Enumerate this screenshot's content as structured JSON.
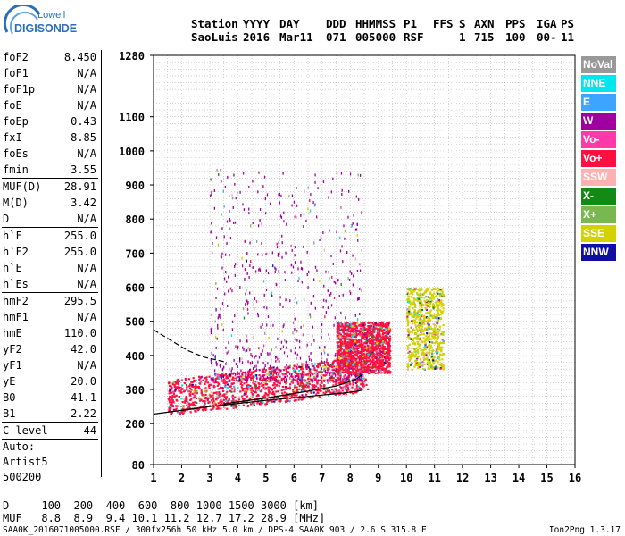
{
  "logo": {
    "top": "Lowell",
    "bottom": "DIGISONDE"
  },
  "header": {
    "labels": [
      "Station",
      "YYYY",
      "DAY",
      "DDD",
      "HHMMSS",
      "P1",
      "FFS",
      "S",
      "AXN",
      "PPS",
      "IGA",
      "PS"
    ],
    "values": [
      "SaoLuis",
      "2016",
      "Mar11",
      "071",
      "005000",
      "RSF",
      "",
      "1",
      "715",
      "100",
      "00-",
      "11"
    ]
  },
  "params_group1": [
    {
      "name": "foF2",
      "value": "8.450"
    },
    {
      "name": "foF1",
      "value": "N/A"
    },
    {
      "name": "foF1p",
      "value": "N/A"
    },
    {
      "name": "foE",
      "value": "N/A"
    },
    {
      "name": "foEp",
      "value": "0.43"
    },
    {
      "name": "fxI",
      "value": "8.85"
    },
    {
      "name": "foEs",
      "value": "N/A"
    },
    {
      "name": "fmin",
      "value": "3.55"
    }
  ],
  "params_group2": [
    {
      "name": "MUF(D)",
      "value": "28.91"
    },
    {
      "name": "M(D)",
      "value": "3.42"
    },
    {
      "name": "D",
      "value": "N/A"
    }
  ],
  "params_group3": [
    {
      "name": "h`F",
      "value": "255.0"
    },
    {
      "name": "h`F2",
      "value": "255.0"
    },
    {
      "name": "h`E",
      "value": "N/A"
    },
    {
      "name": "h`Es",
      "value": "N/A"
    }
  ],
  "params_group4": [
    {
      "name": "hmF2",
      "value": "295.5"
    },
    {
      "name": "hmF1",
      "value": "N/A"
    },
    {
      "name": "hmE",
      "value": "110.0"
    },
    {
      "name": "yF2",
      "value": "42.0"
    },
    {
      "name": "yF1",
      "value": "N/A"
    },
    {
      "name": "yE",
      "value": "20.0"
    },
    {
      "name": "B0",
      "value": "41.1"
    },
    {
      "name": "B1",
      "value": "2.22"
    }
  ],
  "c_level": {
    "name": "C-level",
    "value": "44"
  },
  "auto": {
    "line1": "Auto:",
    "line2": "Artist5",
    "line3": "500200"
  },
  "legend": [
    {
      "label": "NoVal",
      "color": "#999999"
    },
    {
      "label": "NNE",
      "color": "#00e5ee"
    },
    {
      "label": "E",
      "color": "#3da5ff"
    },
    {
      "label": "W",
      "color": "#a0009f"
    },
    {
      "label": "Vo-",
      "color": "#ff3aa8"
    },
    {
      "label": "Vo+",
      "color": "#ff1040"
    },
    {
      "label": "SSW",
      "color": "#ffb0b0"
    },
    {
      "label": "X-",
      "color": "#138a13"
    },
    {
      "label": "X+",
      "color": "#79b84f"
    },
    {
      "label": "SSE",
      "color": "#d2d200"
    },
    {
      "label": "NNW",
      "color": "#1010a0"
    }
  ],
  "muf_table": {
    "d_label": "D",
    "d_values": [
      "100",
      "200",
      "400",
      "600",
      "800",
      "1000",
      "1500",
      "3000"
    ],
    "d_unit": "[km]",
    "muf_label": "MUF",
    "muf_values": [
      "8.8",
      "8.9",
      "9.4",
      "10.1",
      "11.2",
      "12.7",
      "17.2",
      "28.9"
    ],
    "muf_unit": "[MHz]"
  },
  "footer": {
    "left": "SAA0K_2016071005000.RSF / 300fx256h 50 kHz 5.0 km / DPS-4 SAA0K 903 / 2.6 S 315.8 E",
    "right": "Ion2Png 1.3.17"
  },
  "chart_data": {
    "type": "scatter",
    "title": "",
    "xlabel": "",
    "ylabel": "",
    "xlim": [
      1,
      16
    ],
    "ylim": [
      80,
      1280
    ],
    "x_ticks": [
      1,
      2,
      3,
      4,
      5,
      6,
      7,
      8,
      9,
      10,
      11,
      12,
      13,
      14,
      15,
      16
    ],
    "y_ticks": [
      80,
      200,
      300,
      400,
      500,
      600,
      700,
      800,
      900,
      1000,
      1100,
      1280
    ],
    "grid": true,
    "scatter_cloud": [
      {
        "f_range": [
          1.5,
          8.6
        ],
        "h_range": [
          225,
          330
        ],
        "color": "#ff1040",
        "density": "high",
        "note": "main F-trace echoes"
      },
      {
        "f_range": [
          3.0,
          8.4
        ],
        "h_range": [
          330,
          950
        ],
        "color": "#a0009f",
        "density": "medium",
        "note": "spread F echoes"
      },
      {
        "f_range": [
          7.5,
          9.4
        ],
        "h_range": [
          350,
          500
        ],
        "color": "#ff1040",
        "density": "high"
      },
      {
        "f_range": [
          10.0,
          11.3
        ],
        "h_range": [
          360,
          600
        ],
        "color": "#d2d200",
        "density": "medium"
      }
    ],
    "fitted_curves": [
      {
        "name": "",
        "style": "solid",
        "points": [
          [
            1.0,
            228
          ],
          [
            3.0,
            250
          ],
          [
            5.0,
            268
          ],
          [
            6.5,
            280
          ],
          [
            7.8,
            290
          ],
          [
            8.45,
            298
          ]
        ]
      },
      {
        "name": "",
        "style": "solid",
        "points": [
          [
            3.5,
            258
          ],
          [
            5.0,
            275
          ],
          [
            6.5,
            295
          ],
          [
            7.5,
            310
          ],
          [
            8.2,
            330
          ],
          [
            8.45,
            345
          ]
        ]
      },
      {
        "name": "",
        "style": "dashed",
        "points": [
          [
            1.0,
            475
          ],
          [
            1.6,
            445
          ],
          [
            2.2,
            415
          ],
          [
            2.8,
            395
          ],
          [
            3.6,
            380
          ]
        ]
      }
    ]
  }
}
